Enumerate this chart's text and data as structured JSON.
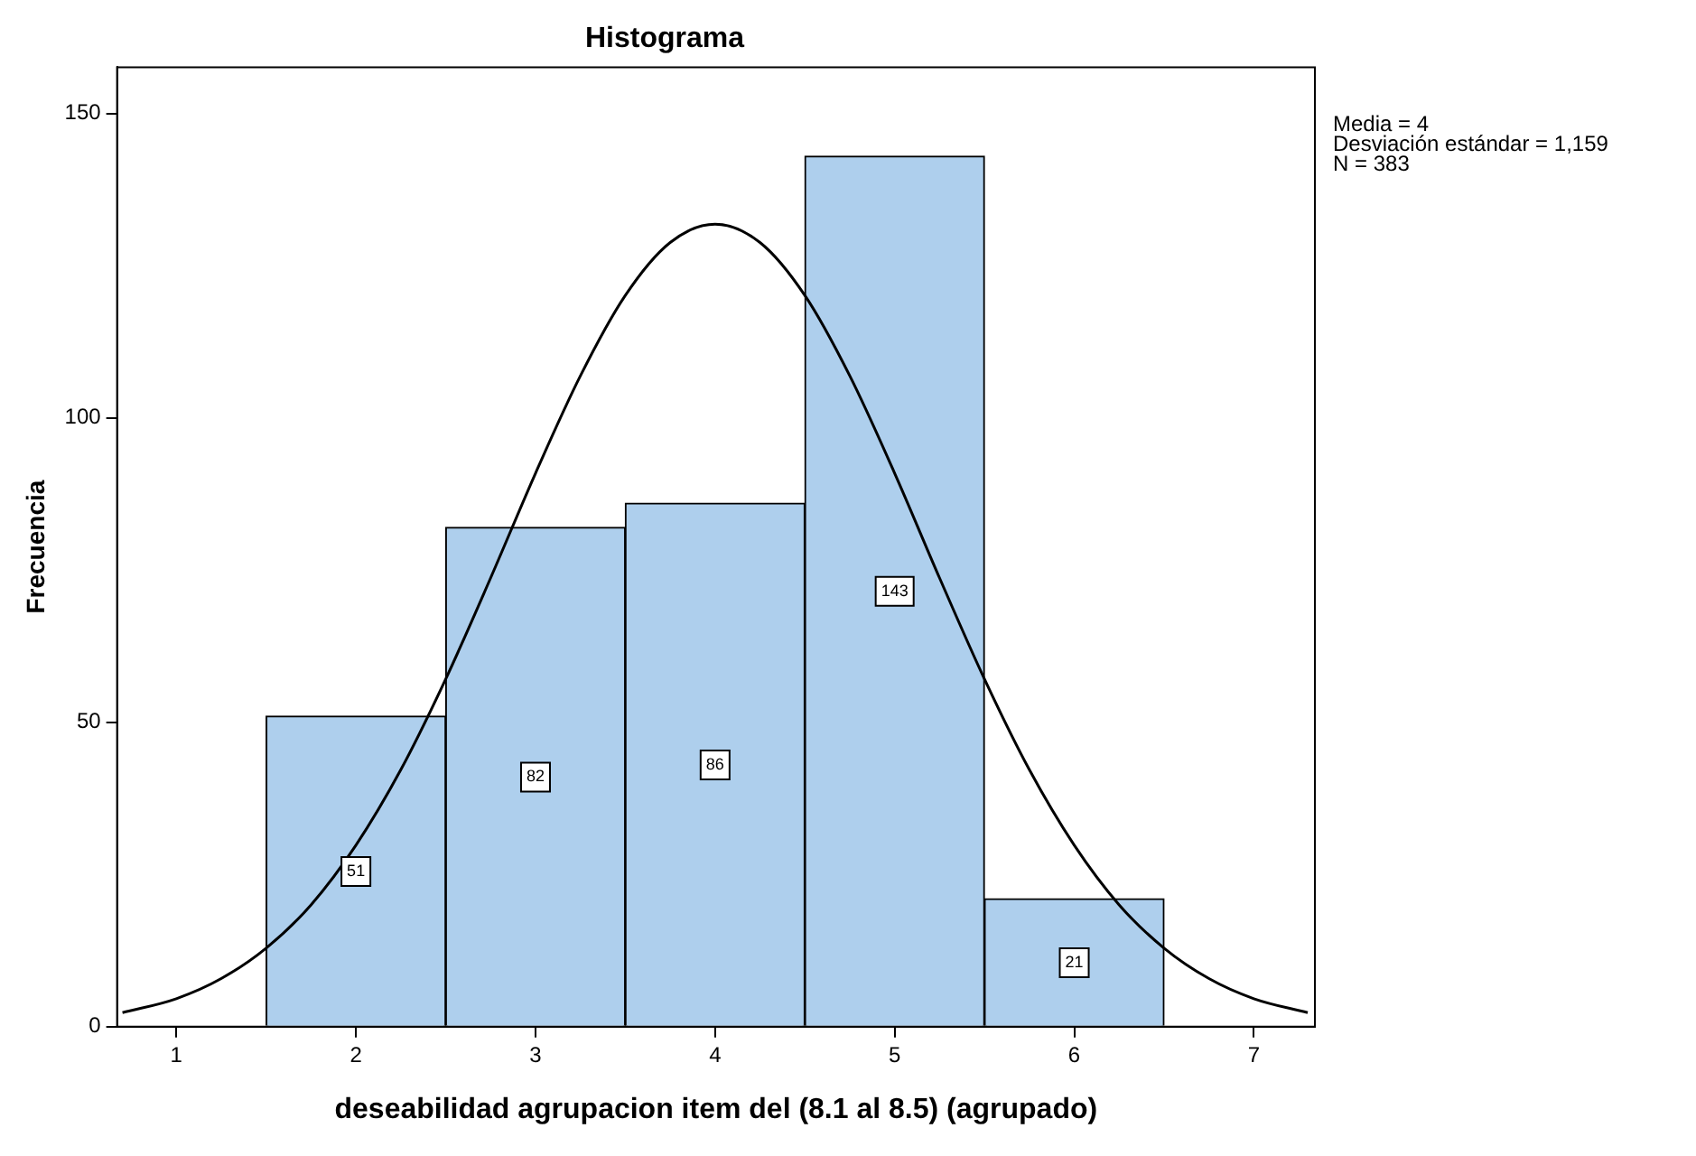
{
  "chart_data": {
    "type": "histogram",
    "title": "Histograma",
    "xlabel": "deseabilidad agrupacion item del (8.1 al 8.5) (agrupado)",
    "ylabel": "Frecuencia",
    "bins": [
      1.5,
      2.5,
      3.5,
      4.5,
      5.5,
      6.5
    ],
    "values": [
      51,
      82,
      86,
      143,
      21
    ],
    "color": "#aecfed",
    "value_labels": [
      "51",
      "82",
      "86",
      "143",
      "21"
    ],
    "series": [
      {
        "type": "line",
        "color": "#000000",
        "x": [
          0.7,
          1,
          1.25,
          1.5,
          1.75,
          2,
          2.25,
          2.5,
          2.75,
          3,
          3.25,
          3.5,
          3.75,
          4,
          4.25,
          4.5,
          4.75,
          5,
          5.25,
          5.5,
          5.75,
          6,
          6.25,
          6.5,
          6.75,
          7,
          7.3
        ],
        "values": [
          2.3,
          4.6,
          7.9,
          12.9,
          20,
          29.8,
          42.2,
          57.1,
          73.7,
          90.9,
          106.9,
          120.1,
          128.8,
          131.8,
          128.8,
          120.1,
          106.9,
          90.9,
          73.7,
          57.1,
          42.2,
          29.8,
          20,
          12.9,
          7.9,
          4.6,
          2.3
        ]
      }
    ],
    "xlim": [
      0.67,
      7.34
    ],
    "xticks": [
      1,
      2,
      3,
      4,
      5,
      6,
      7
    ],
    "ylim": [
      0,
      157.6
    ],
    "yticks": [
      0,
      50,
      100,
      150
    ],
    "grid": false,
    "legend": false,
    "marker": "none",
    "annotations": [
      "Media = 4",
      "Desviación estándar = 1,159",
      "N = 383"
    ]
  }
}
